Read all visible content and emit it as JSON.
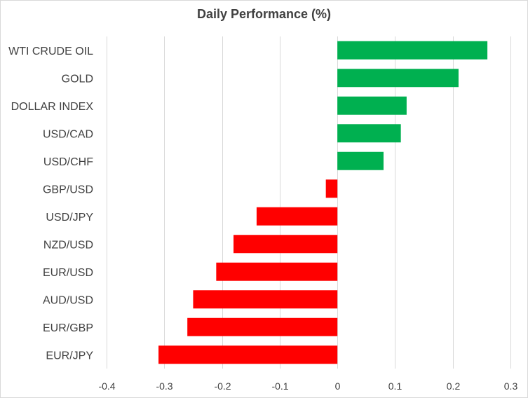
{
  "chart_data": {
    "type": "bar",
    "orientation": "horizontal",
    "title": "Daily Performance  (%)",
    "categories": [
      "WTI CRUDE OIL",
      "GOLD",
      "DOLLAR INDEX",
      "USD/CAD",
      "USD/CHF",
      "GBP/USD",
      "USD/JPY",
      "NZD/USD",
      "EUR/USD",
      "AUD/USD",
      "EUR/GBP",
      "EUR/JPY"
    ],
    "values": [
      0.26,
      0.21,
      0.12,
      0.11,
      0.08,
      -0.02,
      -0.14,
      -0.18,
      -0.21,
      -0.25,
      -0.26,
      -0.31
    ],
    "xlim": [
      -0.4,
      0.3
    ],
    "xticks": [
      "-0.4",
      "-0.3",
      "-0.2",
      "-0.1",
      "0",
      "0.1",
      "0.2",
      "0.3"
    ],
    "grid": "vertical",
    "positive_color": "#00b050",
    "negative_color": "#ff0000",
    "legend": "none"
  }
}
